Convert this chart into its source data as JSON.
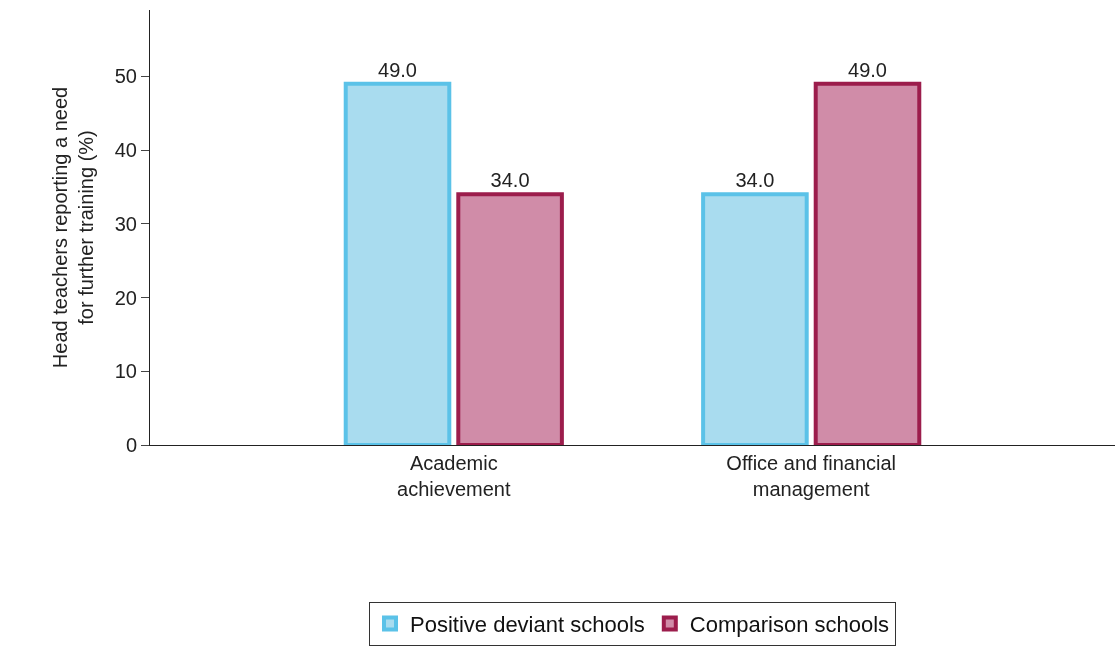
{
  "chart_data": {
    "type": "bar",
    "ylabel": "Head teachers reporting a need\nfor further training (%)",
    "categories": [
      "Academic\nachievement",
      "Office and financial\nmanagement"
    ],
    "series": [
      {
        "name": "Positive deviant schools",
        "color": "#a9dcef",
        "values": [
          49.0,
          34.0
        ],
        "value_labels": [
          "49.0",
          "34.0"
        ]
      },
      {
        "name": "Comparison schools",
        "color": "#d08ca8",
        "values": [
          34.0,
          49.0
        ],
        "value_labels": [
          "34.0",
          "49.0"
        ]
      }
    ],
    "ylim": [
      0,
      59
    ],
    "yticks": [
      0,
      10,
      20,
      30,
      40,
      50
    ],
    "legend": "bottom"
  }
}
